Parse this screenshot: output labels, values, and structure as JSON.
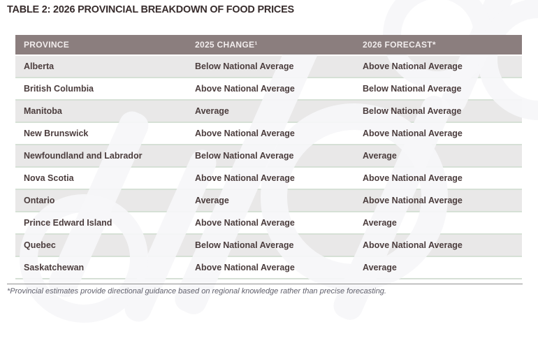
{
  "title": "TABLE 2: 2026 PROVINCIAL BREAKDOWN OF FOOD PRICES",
  "table": {
    "columns": [
      "PROVINCE",
      "2025 CHANGE¹",
      "2026 FORECAST*"
    ],
    "rows": [
      [
        "Alberta",
        "Below National Average",
        "Above National Average"
      ],
      [
        "British Columbia",
        "Above National Average",
        "Below National Average"
      ],
      [
        "Manitoba",
        "Average",
        "Below National Average"
      ],
      [
        "New Brunswick",
        "Above National Average",
        "Above National Average"
      ],
      [
        "Newfoundland and Labrador",
        "Below National Average",
        "Average"
      ],
      [
        "Nova Scotia",
        "Above National Average",
        "Above National Average"
      ],
      [
        "Ontario",
        "Average",
        "Above National Average"
      ],
      [
        "Prince Edward Island",
        "Above National Average",
        "Average"
      ],
      [
        "Quebec",
        "Below National Average",
        "Above National Average"
      ],
      [
        "Saskatchewan",
        "Above National Average",
        "Average"
      ]
    ]
  },
  "footnote": "*Provincial estimates provide directional guidance based on regional knowledge rather than precise forecasting.",
  "colors": {
    "header_background": "#8B7E7E",
    "header_text": "#F2EDED",
    "row_alternate": "#E9E8E8",
    "row_separator": "#D6E0D6",
    "title_text": "#372C2C",
    "cell_text": "#4B3D3D",
    "footnote_text": "#60606C"
  }
}
